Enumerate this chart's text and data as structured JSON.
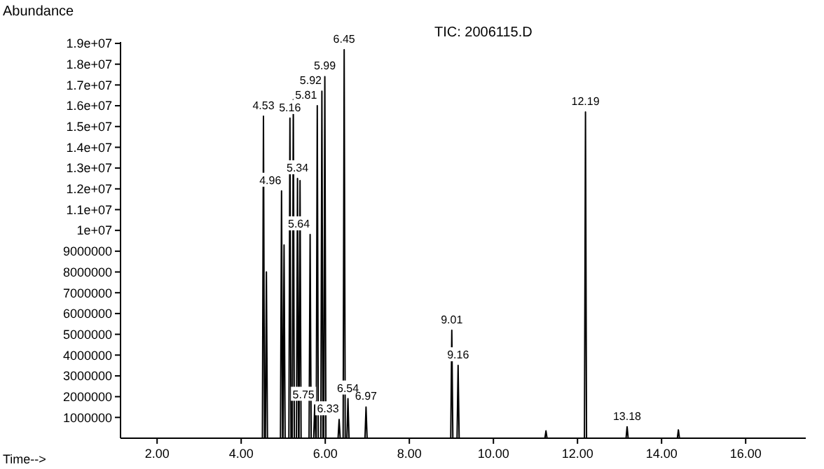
{
  "chart_data": {
    "type": "line",
    "title": "TIC: 2006115.D",
    "xlabel": "Time-->",
    "ylabel": "Abundance",
    "x": [
      1.2,
      4.505,
      4.53,
      4.555,
      4.575,
      4.6,
      4.625,
      4.935,
      4.96,
      4.985,
      4.995,
      5.02,
      5.045,
      5.135,
      5.16,
      5.185,
      5.215,
      5.24,
      5.265,
      5.315,
      5.34,
      5.365,
      5.375,
      5.4,
      5.425,
      5.615,
      5.64,
      5.665,
      5.725,
      5.75,
      5.775,
      5.785,
      5.81,
      5.835,
      5.895,
      5.92,
      5.945,
      5.965,
      5.99,
      6.015,
      6.305,
      6.33,
      6.355,
      6.425,
      6.45,
      6.475,
      6.515,
      6.54,
      6.565,
      6.945,
      6.97,
      6.995,
      8.985,
      9.01,
      9.035,
      9.135,
      9.16,
      9.185,
      11.225,
      11.25,
      11.275,
      12.165,
      12.19,
      12.215,
      13.155,
      13.18,
      13.205,
      14.375,
      14.4,
      14.425,
      17.4
    ],
    "series": [
      {
        "color": "#000000",
        "values": [
          0,
          0,
          15500000,
          0,
          0,
          8000000,
          0,
          0,
          11900000,
          0,
          0,
          9300000,
          0,
          0,
          15400000,
          0,
          0,
          16300000,
          0,
          0,
          12500000,
          0,
          0,
          12400000,
          0,
          0,
          9800000,
          0,
          0,
          1600000,
          0,
          0,
          16000000,
          0,
          0,
          16700000,
          0,
          0,
          17400000,
          0,
          0,
          900000,
          0,
          0,
          18700000,
          0,
          0,
          1900000,
          0,
          0,
          1500000,
          0,
          0,
          5200000,
          0,
          0,
          3500000,
          0,
          0,
          350000,
          0,
          0,
          15700000,
          0,
          0,
          550000,
          0,
          0,
          400000,
          0,
          0
        ]
      }
    ],
    "xlim": [
      1.13,
      17.43
    ],
    "ylim": [
      0,
      19000000
    ],
    "xticks": [
      {
        "value": 2,
        "label": "2.00"
      },
      {
        "value": 4,
        "label": "4.00"
      },
      {
        "value": 6,
        "label": "6.00"
      },
      {
        "value": 8,
        "label": "8.00"
      },
      {
        "value": 10,
        "label": "10.00"
      },
      {
        "value": 12,
        "label": "12.00"
      },
      {
        "value": 14,
        "label": "14.00"
      },
      {
        "value": 16,
        "label": "16.00"
      }
    ],
    "yticks": [
      1000000,
      2000000,
      3000000,
      4000000,
      5000000,
      6000000,
      7000000,
      8000000,
      9000000,
      {
        "value": 10000000,
        "label": "1e+07"
      },
      {
        "value": 11000000,
        "label": "1.1e+07"
      },
      {
        "value": 12000000,
        "label": "1.2e+07"
      },
      {
        "value": 13000000,
        "label": "1.3e+07"
      },
      {
        "value": 14000000,
        "label": "1.4e+07"
      },
      {
        "value": 15000000,
        "label": "1.5e+07"
      },
      {
        "value": 16000000,
        "label": "1.6e+07"
      },
      {
        "value": 17000000,
        "label": "1.7e+07"
      },
      {
        "value": 18000000,
        "label": "1.8e+07"
      },
      {
        "value": 19000000,
        "label": "1.9e+07"
      }
    ],
    "grid": false,
    "marker": "none",
    "line_style": "solid",
    "annotations": [
      {
        "text": "4.53",
        "x": 4.53,
        "y": 15500000
      },
      {
        "text": "4.96",
        "x": 4.96,
        "y": 11900000
      },
      {
        "text": "5.16",
        "x": 5.16,
        "y": 15400000
      },
      {
        "text": "5.34",
        "x": 5.34,
        "y": 12500000
      },
      {
        "text": "5.64",
        "x": 5.64,
        "y": 9800000
      },
      {
        "text": "5.75",
        "x": 5.75,
        "y": 1600000
      },
      {
        "text": "5.81",
        "x": 5.81,
        "y": 16000000
      },
      {
        "text": "5.92",
        "x": 5.92,
        "y": 16700000
      },
      {
        "text": "5.99",
        "x": 5.99,
        "y": 17400000
      },
      {
        "text": "6.33",
        "x": 6.33,
        "y": 900000
      },
      {
        "text": "6.45",
        "x": 6.45,
        "y": 18700000
      },
      {
        "text": "6.54",
        "x": 6.54,
        "y": 1900000
      },
      {
        "text": "6.97",
        "x": 6.97,
        "y": 1500000
      },
      {
        "text": "9.01",
        "x": 9.01,
        "y": 5200000
      },
      {
        "text": "9.16",
        "x": 9.16,
        "y": 3500000
      },
      {
        "text": "12.19",
        "x": 12.19,
        "y": 15700000
      },
      {
        "text": "13.18",
        "x": 13.18,
        "y": 550000
      }
    ]
  }
}
